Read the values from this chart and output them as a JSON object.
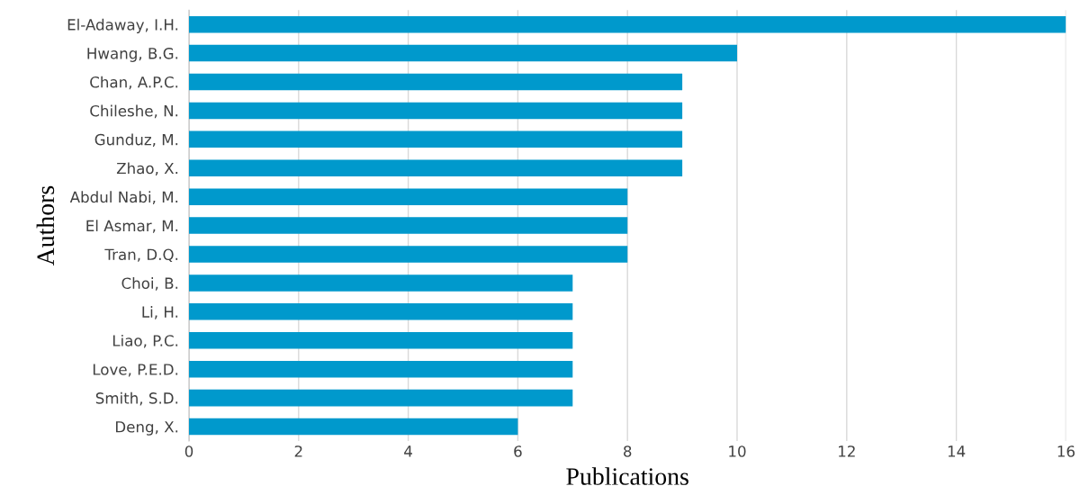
{
  "chart_data": {
    "type": "bar",
    "orientation": "horizontal",
    "xlabel": "Publications",
    "ylabel": "Authors",
    "categories": [
      "El-Adaway, I.H.",
      "Hwang, B.G.",
      "Chan, A.P.C.",
      "Chileshe, N.",
      "Gunduz, M.",
      "Zhao, X.",
      "Abdul Nabi, M.",
      "El Asmar, M.",
      "Tran, D.Q.",
      "Choi, B.",
      "Li, H.",
      "Liao, P.C.",
      "Love, P.E.D.",
      "Smith, S.D.",
      "Deng, X."
    ],
    "values": [
      16,
      10,
      9,
      9,
      9,
      9,
      8,
      8,
      8,
      7,
      7,
      7,
      7,
      7,
      6
    ],
    "color": "#0099cc",
    "xlim": [
      0,
      16
    ],
    "xticks": [
      0,
      2,
      4,
      6,
      8,
      10,
      12,
      14,
      16
    ],
    "grid": "x"
  }
}
